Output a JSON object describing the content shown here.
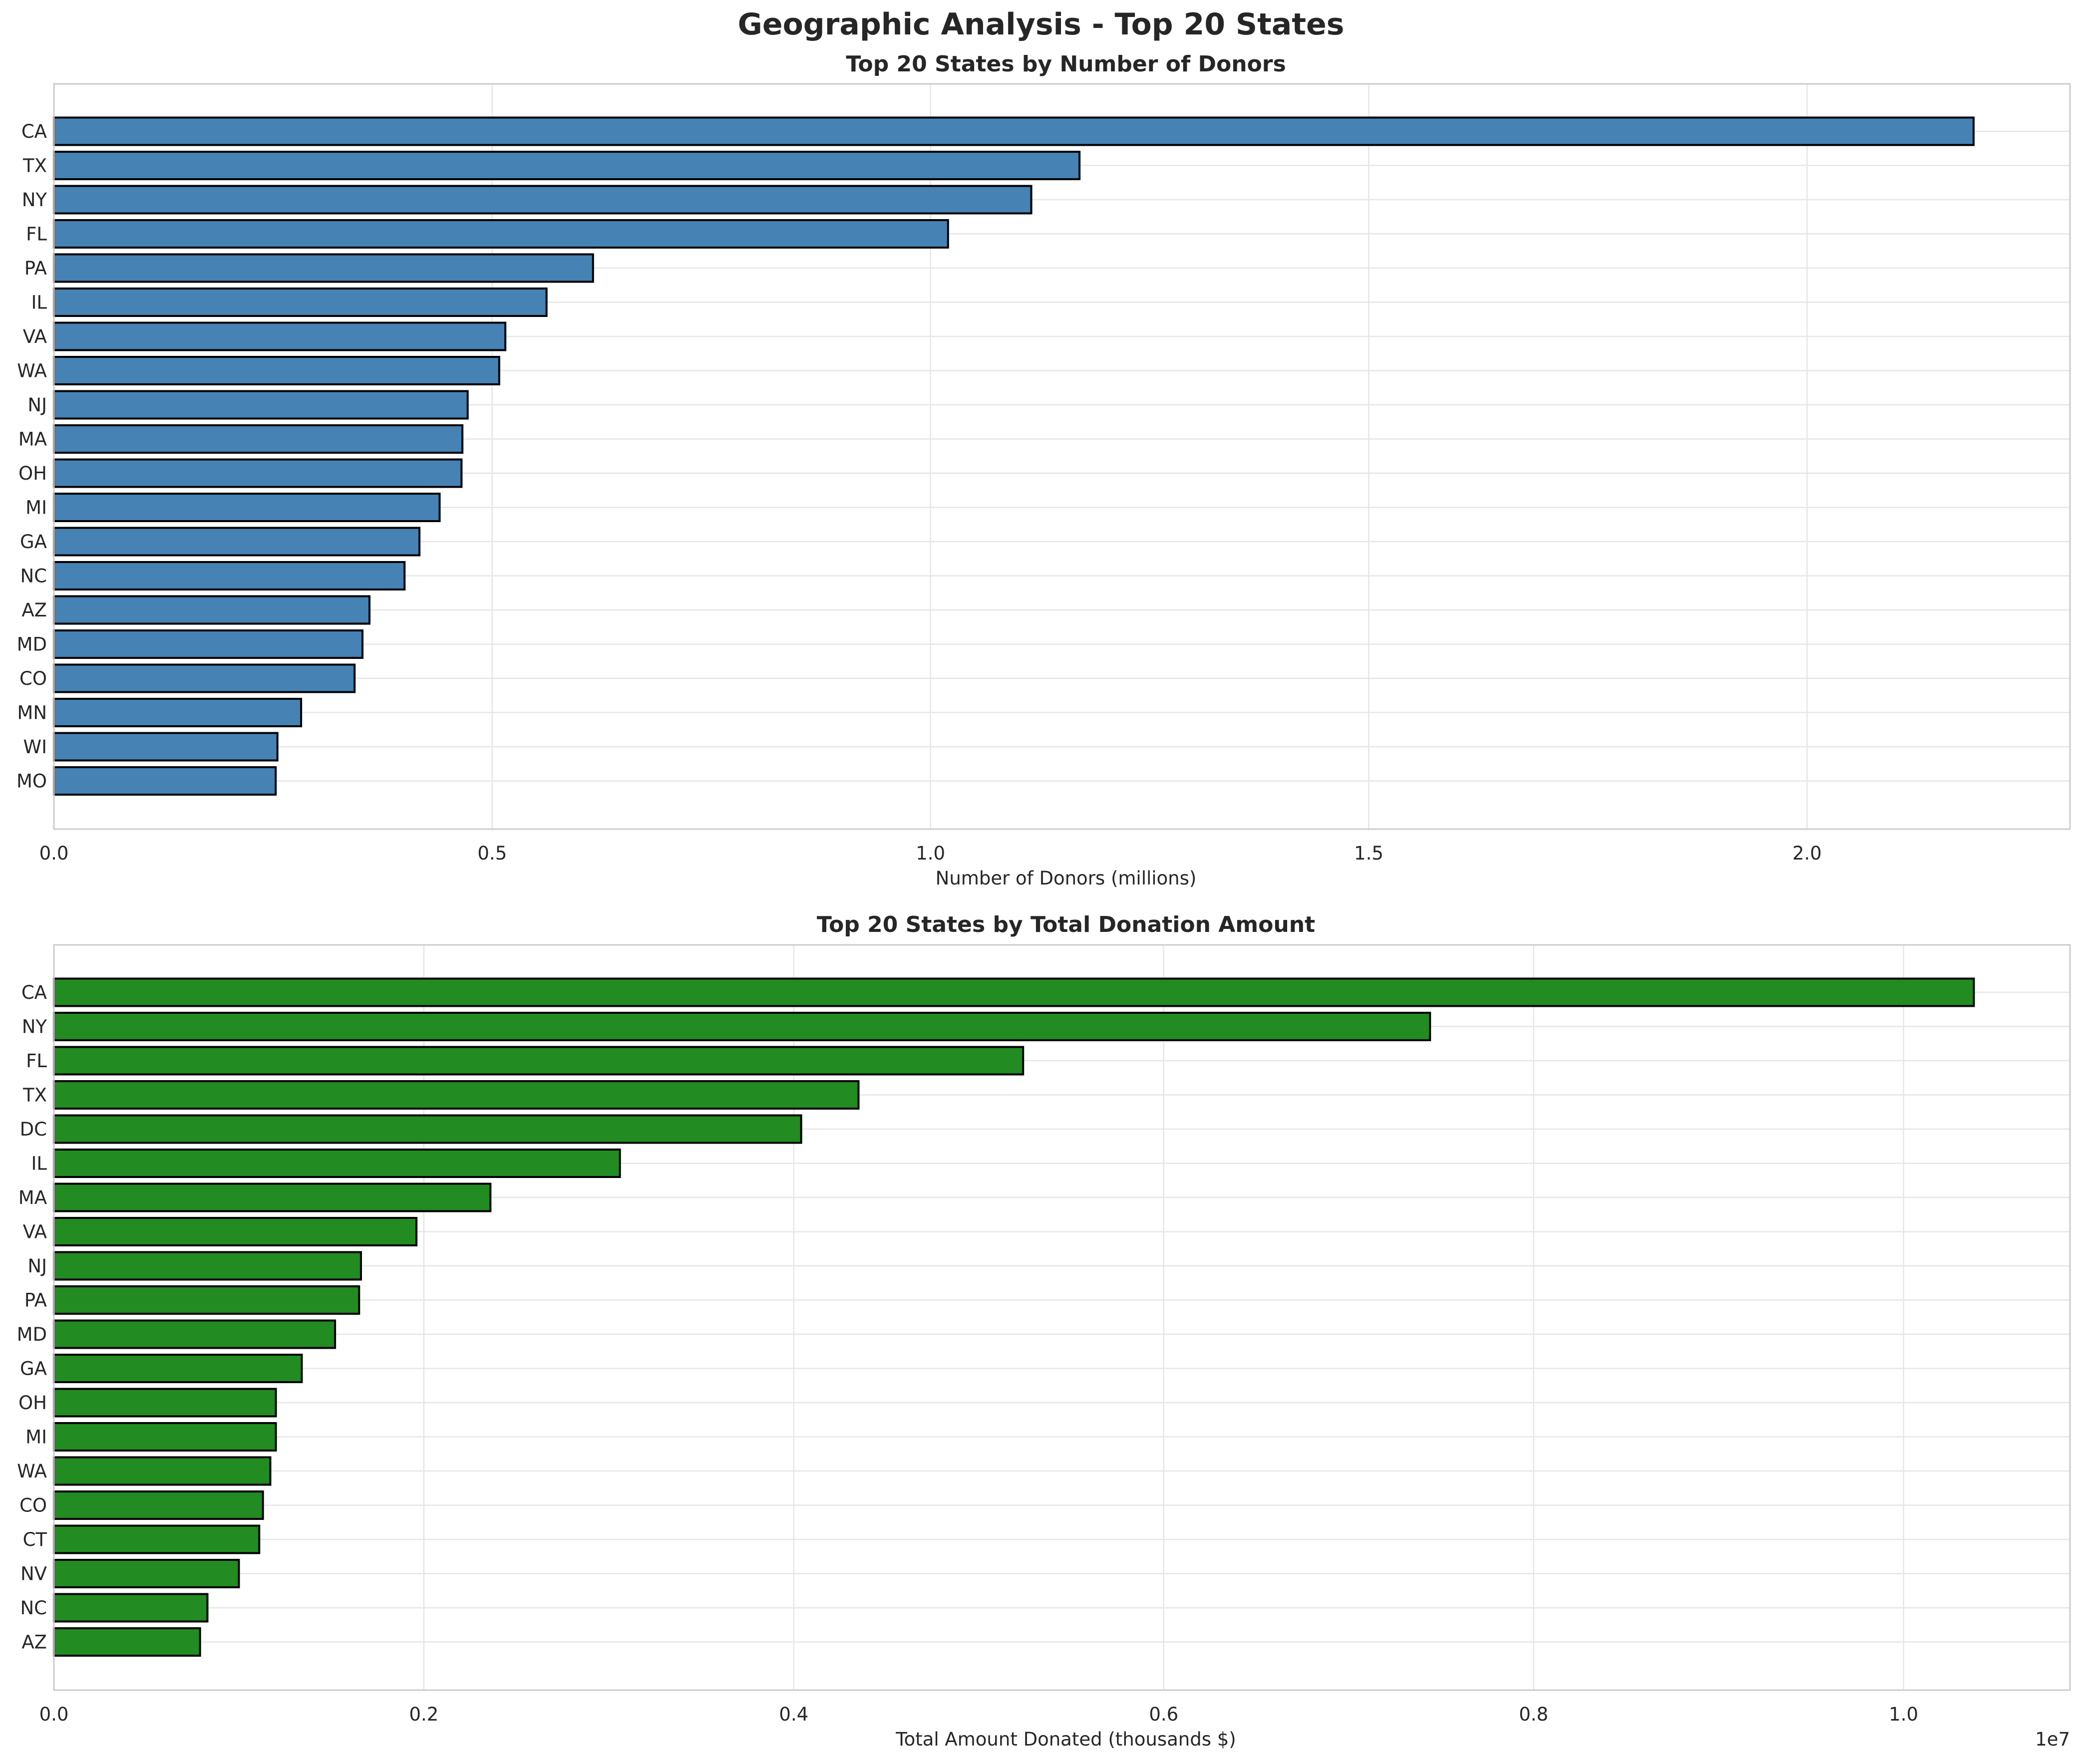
{
  "figure": {
    "title": "Geographic Analysis - Top 20 States"
  },
  "colors": {
    "blue": "#4682b4",
    "green": "#228b22",
    "edge": "#000000",
    "grid": "#e6e6e6",
    "frame": "#cccccc"
  },
  "chart_data": [
    {
      "type": "bar",
      "orientation": "horizontal",
      "title": "Top 20 States by Number of Donors",
      "xlabel": "Number of Donors (millions)",
      "ylabel": "",
      "xlim": [
        0,
        2.3
      ],
      "xticks": [
        0.0,
        0.5,
        1.0,
        1.5,
        2.0
      ],
      "xtick_labels": [
        "0.0",
        "0.5",
        "1.0",
        "1.5",
        "2.0"
      ],
      "offset_label": "",
      "grid": true,
      "color": "#4682b4",
      "categories": [
        "CA",
        "TX",
        "NY",
        "FL",
        "PA",
        "IL",
        "VA",
        "WA",
        "NJ",
        "MA",
        "OH",
        "MI",
        "GA",
        "NC",
        "AZ",
        "MD",
        "CO",
        "MN",
        "WI",
        "MO"
      ],
      "values": [
        2.19,
        1.17,
        1.115,
        1.02,
        0.615,
        0.562,
        0.515,
        0.508,
        0.472,
        0.466,
        0.465,
        0.44,
        0.417,
        0.4,
        0.36,
        0.352,
        0.343,
        0.282,
        0.255,
        0.253
      ]
    },
    {
      "type": "bar",
      "orientation": "horizontal",
      "title": "Top 20 States by Total Donation Amount",
      "xlabel": "Total Amount Donated (thousands $)",
      "ylabel": "",
      "xlim": [
        0,
        1.09
      ],
      "xticks": [
        0.0,
        0.2,
        0.4,
        0.6,
        0.8,
        1.0
      ],
      "xtick_labels": [
        "0.0",
        "0.2",
        "0.4",
        "0.6",
        "0.8",
        "1.0"
      ],
      "offset_label": "1e7",
      "grid": true,
      "color": "#228b22",
      "categories": [
        "CA",
        "NY",
        "FL",
        "TX",
        "DC",
        "IL",
        "MA",
        "VA",
        "NJ",
        "PA",
        "MD",
        "GA",
        "OH",
        "MI",
        "WA",
        "CO",
        "CT",
        "NV",
        "NC",
        "AZ"
      ],
      "values": [
        1.038,
        0.744,
        0.524,
        0.435,
        0.404,
        0.306,
        0.236,
        0.196,
        0.166,
        0.165,
        0.152,
        0.134,
        0.12,
        0.12,
        0.117,
        0.113,
        0.111,
        0.1,
        0.083,
        0.079
      ]
    }
  ]
}
